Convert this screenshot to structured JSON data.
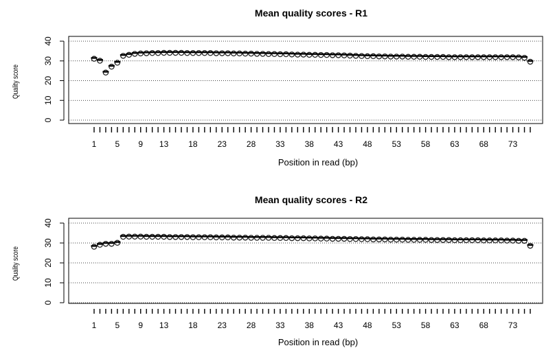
{
  "chart_data": [
    {
      "type": "scatter",
      "title": "Mean quality scores - R1",
      "xlabel": "Position in read (bp)",
      "ylabel": "Quality score",
      "xlim": [
        1,
        76
      ],
      "ylim": [
        0,
        40
      ],
      "x_tick_labels": [
        "1",
        "5",
        "9",
        "13",
        "18",
        "23",
        "28",
        "33",
        "38",
        "43",
        "48",
        "53",
        "58",
        "63",
        "68",
        "73"
      ],
      "y_tick_labels": [
        "0",
        "10",
        "20",
        "30",
        "40"
      ],
      "grid": "horizontal dotted lines",
      "x": [
        1,
        2,
        3,
        4,
        5,
        6,
        7,
        8,
        9,
        10,
        11,
        12,
        13,
        14,
        15,
        16,
        17,
        18,
        19,
        20,
        21,
        22,
        23,
        24,
        25,
        26,
        27,
        28,
        29,
        30,
        31,
        32,
        33,
        34,
        35,
        36,
        37,
        38,
        39,
        40,
        41,
        42,
        43,
        44,
        45,
        46,
        47,
        48,
        49,
        50,
        51,
        52,
        53,
        54,
        55,
        56,
        57,
        58,
        59,
        60,
        61,
        62,
        63,
        64,
        65,
        66,
        67,
        68,
        69,
        70,
        71,
        72,
        73,
        74,
        75,
        76
      ],
      "values": [
        31.5,
        30.5,
        24.5,
        27.5,
        29.5,
        33.0,
        33.5,
        34.0,
        34.2,
        34.3,
        34.4,
        34.4,
        34.5,
        34.5,
        34.5,
        34.5,
        34.4,
        34.4,
        34.4,
        34.4,
        34.4,
        34.3,
        34.3,
        34.3,
        34.2,
        34.2,
        34.1,
        34.1,
        34.0,
        34.0,
        33.9,
        33.9,
        33.8,
        33.8,
        33.7,
        33.6,
        33.6,
        33.5,
        33.5,
        33.4,
        33.4,
        33.3,
        33.3,
        33.2,
        33.1,
        33.0,
        32.9,
        32.8,
        32.8,
        32.7,
        32.7,
        32.6,
        32.6,
        32.6,
        32.5,
        32.5,
        32.5,
        32.4,
        32.4,
        32.4,
        32.4,
        32.3,
        32.3,
        32.3,
        32.3,
        32.3,
        32.3,
        32.3,
        32.3,
        32.3,
        32.3,
        32.3,
        32.3,
        32.2,
        32.0,
        30.0
      ]
    },
    {
      "type": "scatter",
      "title": "Mean quality scores - R2",
      "xlabel": "Position in read (bp)",
      "ylabel": "Quality score",
      "xlim": [
        1,
        76
      ],
      "ylim": [
        0,
        40
      ],
      "x_tick_labels": [
        "1",
        "5",
        "9",
        "13",
        "18",
        "23",
        "28",
        "33",
        "38",
        "43",
        "48",
        "53",
        "58",
        "63",
        "68",
        "73"
      ],
      "y_tick_labels": [
        "0",
        "10",
        "20",
        "30",
        "40"
      ],
      "grid": "horizontal dotted lines",
      "x": [
        1,
        2,
        3,
        4,
        5,
        6,
        7,
        8,
        9,
        10,
        11,
        12,
        13,
        14,
        15,
        16,
        17,
        18,
        19,
        20,
        21,
        22,
        23,
        24,
        25,
        26,
        27,
        28,
        29,
        30,
        31,
        32,
        33,
        34,
        35,
        36,
        37,
        38,
        39,
        40,
        41,
        42,
        43,
        44,
        45,
        46,
        47,
        48,
        49,
        50,
        51,
        52,
        53,
        54,
        55,
        56,
        57,
        58,
        59,
        60,
        61,
        62,
        63,
        64,
        65,
        66,
        67,
        68,
        69,
        70,
        71,
        72,
        73,
        74,
        75,
        76
      ],
      "values": [
        28.5,
        29.5,
        30.0,
        30.0,
        30.5,
        33.5,
        33.6,
        33.6,
        33.6,
        33.5,
        33.5,
        33.5,
        33.5,
        33.4,
        33.4,
        33.4,
        33.4,
        33.3,
        33.3,
        33.3,
        33.3,
        33.2,
        33.2,
        33.2,
        33.1,
        33.1,
        33.1,
        33.0,
        33.0,
        33.0,
        33.0,
        32.9,
        32.9,
        32.9,
        32.8,
        32.8,
        32.8,
        32.7,
        32.7,
        32.6,
        32.6,
        32.5,
        32.5,
        32.5,
        32.4,
        32.4,
        32.3,
        32.3,
        32.2,
        32.2,
        32.2,
        32.1,
        32.1,
        32.1,
        32.0,
        32.0,
        32.0,
        32.0,
        31.9,
        31.9,
        31.9,
        31.9,
        31.8,
        31.8,
        31.8,
        31.8,
        31.8,
        31.7,
        31.7,
        31.7,
        31.7,
        31.6,
        31.6,
        31.5,
        31.5,
        29.0
      ]
    }
  ]
}
